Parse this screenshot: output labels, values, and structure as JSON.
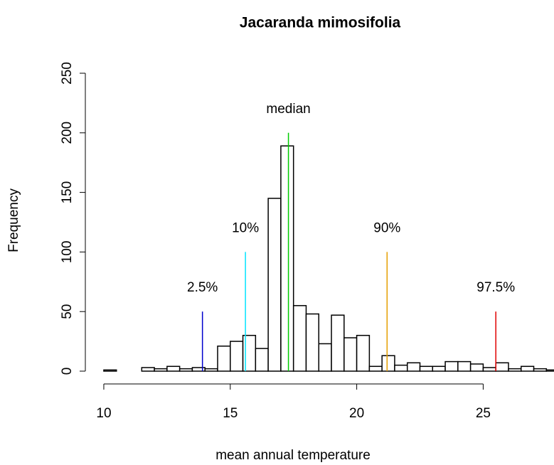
{
  "chart_data": {
    "type": "histogram",
    "title": "Jacaranda mimosifolia",
    "x_label": "mean annual temperature",
    "y_label": "Frequency",
    "bins": [
      10,
      10.5,
      11,
      11.5,
      12,
      12.5,
      13,
      13.5,
      14,
      14.5,
      15,
      15.5,
      16,
      16.5,
      17,
      17.5,
      18,
      18.5,
      19,
      19.5,
      20,
      20.5,
      21,
      21.5,
      22,
      22.5,
      23,
      23.5,
      24,
      24.5,
      25,
      25.5,
      26,
      26.5,
      27,
      27.5,
      28
    ],
    "values": [
      1,
      0,
      0,
      3,
      2,
      4,
      2,
      3,
      2,
      21,
      25,
      30,
      19,
      145,
      189,
      55,
      48,
      23,
      47,
      28,
      30,
      4,
      13,
      5,
      7,
      4,
      4,
      8,
      8,
      6,
      3,
      7,
      2,
      4,
      2,
      1
    ],
    "xlim": [
      9.27,
      27.8
    ],
    "ylim": [
      0,
      250
    ],
    "xticks": [
      10,
      15,
      20,
      25
    ],
    "yticks": [
      0,
      50,
      100,
      150,
      200,
      250
    ],
    "annotations": [
      {
        "label": "2.5%",
        "x": 13.9,
        "height": 50,
        "color": "#0000cd"
      },
      {
        "label": "10%",
        "x": 15.6,
        "height": 100,
        "color": "#00e5ff"
      },
      {
        "label": "median",
        "x": 17.3,
        "height": 200,
        "color": "#00cd00"
      },
      {
        "label": "90%",
        "x": 21.2,
        "height": 100,
        "color": "#e69f00"
      },
      {
        "label": "97.5%",
        "x": 25.5,
        "height": 50,
        "color": "#e00000"
      }
    ]
  }
}
